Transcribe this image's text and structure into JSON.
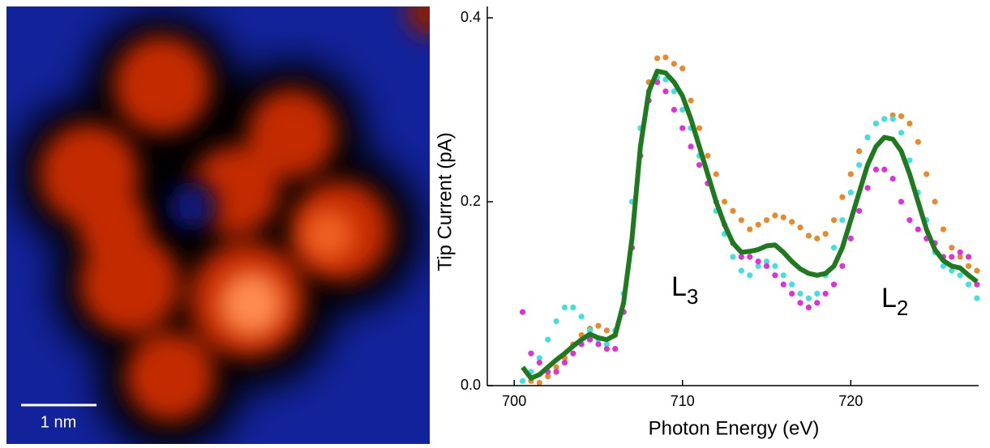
{
  "image": {
    "scale_bar": "1 nm"
  },
  "chart_data": {
    "type": "scatter",
    "xlabel": "Photon Energy (eV)",
    "ylabel": "Tip Current (pA)",
    "xlim": [
      698.4,
      727.6
    ],
    "ylim": [
      0,
      0.4
    ],
    "xticks": [
      700,
      710,
      720
    ],
    "yticks": [
      {
        "value": 0,
        "label": "0.0"
      },
      {
        "value": 0.2,
        "label": "0.2"
      },
      {
        "value": 0.4,
        "label": "0.4"
      }
    ],
    "annotations": [
      {
        "text": "L",
        "sub": "3"
      },
      {
        "text": "L",
        "sub": "2"
      }
    ],
    "x": [
      700.5,
      701,
      701.5,
      702,
      702.5,
      703,
      703.5,
      704,
      704.5,
      705,
      705.5,
      706,
      706.5,
      707,
      707.5,
      708,
      708.5,
      709,
      709.5,
      710,
      710.5,
      711,
      711.5,
      712,
      712.5,
      713,
      713.5,
      714,
      714.5,
      715,
      715.5,
      716,
      716.5,
      717,
      717.5,
      718,
      718.5,
      719,
      719.5,
      720,
      720.5,
      721,
      721.5,
      722,
      722.5,
      723,
      723.5,
      724,
      724.5,
      725,
      725.5,
      726,
      726.5,
      727,
      727.5
    ],
    "series": [
      {
        "style": "dots",
        "color": "#e8892a",
        "values": [
          null,
          0.005,
          0.003,
          0.01,
          0.02,
          0.03,
          0.045,
          0.055,
          0.062,
          0.065,
          0.06,
          0.055,
          0.08,
          0.15,
          0.25,
          0.33,
          0.356,
          0.357,
          0.35,
          0.345,
          0.31,
          0.28,
          0.25,
          0.23,
          0.2,
          0.19,
          0.18,
          0.17,
          0.175,
          0.18,
          0.185,
          0.183,
          0.178,
          0.172,
          0.163,
          0.16,
          0.165,
          0.18,
          0.205,
          0.23,
          0.255,
          0.27,
          0.285,
          0.29,
          0.294,
          0.293,
          0.285,
          0.265,
          0.23,
          0.2,
          0.17,
          0.15,
          0.14,
          0.13,
          0.125
        ]
      },
      {
        "style": "dots",
        "color": "#40e0e0",
        "values": [
          0.005,
          0.015,
          0.03,
          0.05,
          0.07,
          0.085,
          0.085,
          0.075,
          0.06,
          0.05,
          0.045,
          0.06,
          0.1,
          0.2,
          0.28,
          0.32,
          0.335,
          0.333,
          0.32,
          0.3,
          0.28,
          0.25,
          0.22,
          0.19,
          0.165,
          0.14,
          0.125,
          0.12,
          0.13,
          0.135,
          0.13,
          0.12,
          0.11,
          0.1,
          0.095,
          0.1,
          0.12,
          0.15,
          0.18,
          0.21,
          0.24,
          0.27,
          0.285,
          0.29,
          0.29,
          0.275,
          0.245,
          0.21,
          0.18,
          0.145,
          0.13,
          0.125,
          0.12,
          0.11,
          0.095
        ]
      },
      {
        "style": "dots",
        "color": "#e030d8",
        "values": [
          0.08,
          0.035,
          0.025,
          0.015,
          0.015,
          0.025,
          0.035,
          0.045,
          0.05,
          0.045,
          0.04,
          0.04,
          0.08,
          0.15,
          0.25,
          0.31,
          0.33,
          0.32,
          0.3,
          0.28,
          0.26,
          0.24,
          0.22,
          0.2,
          0.175,
          0.155,
          0.14,
          0.14,
          0.135,
          0.13,
          0.12,
          0.11,
          0.1,
          0.09,
          0.085,
          0.09,
          0.1,
          0.11,
          0.13,
          0.16,
          0.19,
          0.215,
          0.235,
          0.235,
          0.225,
          0.2,
          0.18,
          0.17,
          0.16,
          0.155,
          0.14,
          0.14,
          0.145,
          0.14,
          0.11
        ]
      },
      {
        "style": "line",
        "color": "#1f7a1f",
        "values": [
          0.02,
          0.008,
          0.012,
          0.02,
          0.028,
          0.035,
          0.043,
          0.05,
          0.056,
          0.052,
          0.05,
          0.055,
          0.09,
          0.16,
          0.26,
          0.32,
          0.342,
          0.34,
          0.33,
          0.315,
          0.29,
          0.26,
          0.23,
          0.2,
          0.175,
          0.155,
          0.145,
          0.146,
          0.148,
          0.152,
          0.153,
          0.145,
          0.135,
          0.127,
          0.122,
          0.12,
          0.122,
          0.13,
          0.15,
          0.18,
          0.21,
          0.24,
          0.26,
          0.27,
          0.268,
          0.255,
          0.23,
          0.2,
          0.17,
          0.148,
          0.136,
          0.13,
          0.128,
          0.12,
          0.113
        ]
      }
    ]
  }
}
